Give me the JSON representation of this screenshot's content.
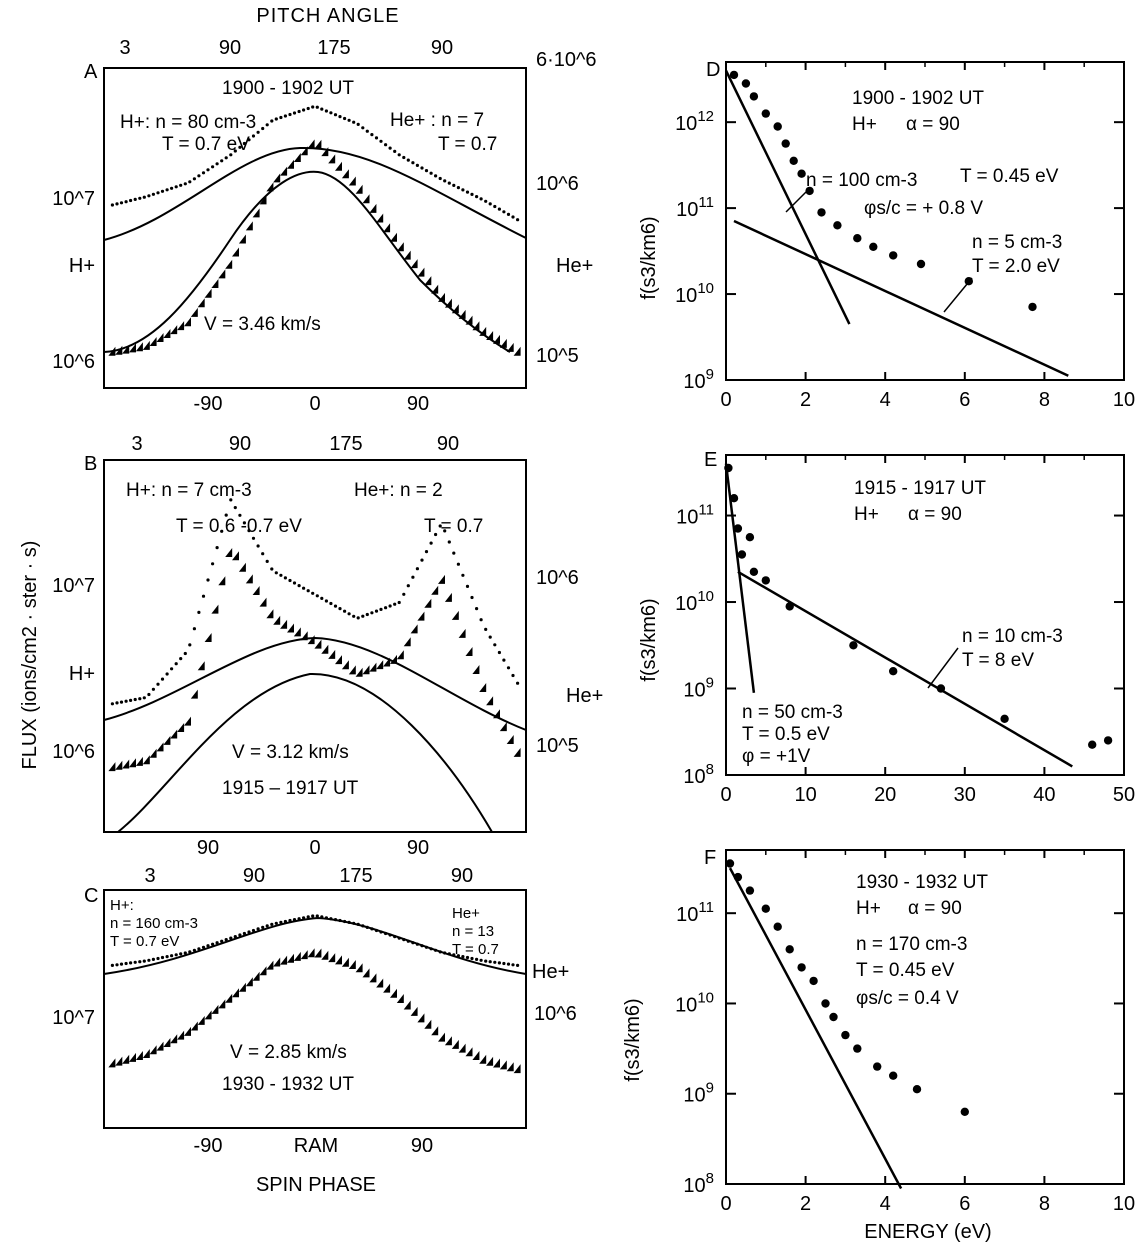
{
  "figure": {
    "top_axis_title": "PITCH ANGLE",
    "left_axis_title": "FLUX (ions/cm2 · ster · s)",
    "spin_phase_label": "SPIN PHASE",
    "energy_label": "ENERGY (eV)",
    "f_label": "f(s3/km6)"
  },
  "chart_data": [
    {
      "panel": "A",
      "type": "scatter",
      "title": "1900 - 1902 UT",
      "top_ticks": [
        "3",
        "90",
        "175",
        "90"
      ],
      "bottom_ticks": [
        "-90",
        "0",
        "90"
      ],
      "left_ticks": [
        "10^7",
        "10^6"
      ],
      "right_ticks": [
        "6·10^6",
        "10^6",
        "10^5"
      ],
      "left_species": "H+",
      "right_species": "He+",
      "h_params": "H+: n = 80 cm-3",
      "h_temp": "T = 0.7 eV",
      "he_params": "He+ : n = 7",
      "he_temp": "T = 0.7",
      "velocity": "V = 3.46 km/s",
      "xlim": [
        -200,
        200
      ],
      "x": [
        -200,
        -160,
        -120,
        -80,
        -40,
        0,
        40,
        80,
        120,
        160,
        200
      ],
      "series": [
        {
          "values": [
            2.6,
            2.75,
            2.95,
            3.35,
            3.85,
            4.05,
            3.8,
            3.35,
            3.0,
            2.7,
            2.35
          ]
        },
        {
          "values": [
            0.5,
            0.6,
            0.95,
            1.8,
            2.95,
            3.55,
            2.9,
            2.05,
            1.3,
            0.8,
            0.45
          ]
        }
      ]
    },
    {
      "panel": "B",
      "type": "scatter",
      "top_ticks": [
        "3",
        "90",
        "175",
        "90"
      ],
      "bottom_ticks": [
        "90",
        "0",
        "90"
      ],
      "left_ticks": [
        "10^7",
        "10^6"
      ],
      "right_ticks": [
        "10^6",
        "10^5"
      ],
      "left_species": "H+",
      "right_species": "He+",
      "h_params": "H+: n = 7 cm-3",
      "h_temp": "T = 0.6 -0.7 eV",
      "he_params": "He+: n = 2",
      "he_temp": "T = 0.7",
      "velocity": "V = 3.12 km/s",
      "time": "1915 – 1917 UT",
      "xlim": [
        -200,
        200
      ],
      "x": [
        -200,
        -160,
        -120,
        -80,
        -40,
        0,
        40,
        80,
        120,
        160,
        200
      ],
      "series": [
        {
          "values": [
            1.6,
            1.7,
            2.3,
            4.2,
            3.3,
            3.0,
            2.7,
            2.9,
            3.9,
            2.6,
            1.7
          ]
        },
        {
          "values": [
            0.8,
            0.9,
            1.4,
            3.6,
            2.7,
            2.4,
            2.0,
            2.2,
            3.2,
            1.8,
            0.8
          ]
        }
      ]
    },
    {
      "panel": "C",
      "type": "scatter",
      "top_ticks": [
        "3",
        "90",
        "175",
        "90"
      ],
      "bottom_ticks": [
        "-90",
        "RAM",
        "90"
      ],
      "left_ticks": [
        "10^7"
      ],
      "right_ticks": [
        "10^6"
      ],
      "left_species": "",
      "right_species": "He+",
      "h_params_1": "H+:",
      "h_params_2": "n = 160 cm-3",
      "h_temp": "T = 0.7 eV",
      "he_params_1": "He+",
      "he_params_2": "n = 13",
      "he_temp": "T = 0.7",
      "velocity": "V = 2.85 km/s",
      "time": "1930 - 1932 UT",
      "xlim": [
        -200,
        200
      ],
      "x": [
        -200,
        -160,
        -120,
        -80,
        -40,
        0,
        40,
        80,
        120,
        160,
        200
      ],
      "series": [
        {
          "values": [
            2.85,
            2.95,
            3.1,
            3.35,
            3.6,
            3.75,
            3.6,
            3.35,
            3.1,
            2.95,
            2.85
          ]
        },
        {
          "values": [
            1.1,
            1.3,
            1.7,
            2.3,
            2.9,
            3.1,
            2.85,
            2.3,
            1.6,
            1.2,
            1.0
          ]
        }
      ]
    },
    {
      "panel": "D",
      "type": "scatter",
      "title": "1900 - 1902 UT",
      "species": "H+",
      "alpha": "α = 90",
      "xlim": [
        0,
        10
      ],
      "ylim": [
        9,
        12.7
      ],
      "x_ticks": [
        "0",
        "2",
        "4",
        "6",
        "8",
        "10"
      ],
      "y_ticks": [
        "10^12",
        "10^11",
        "10^10",
        "10^9"
      ],
      "fit1_label_1": "n = 100 cm-3",
      "fit1_label_2": "T = 0.45 eV",
      "fit1_label_3": "φs/c = + 0.8 V",
      "fit2_label_1": "n = 5 cm-3",
      "fit2_label_2": "T = 2.0 eV",
      "points_x": [
        0.2,
        0.5,
        0.7,
        1.0,
        1.3,
        1.5,
        1.7,
        1.9,
        2.1,
        2.4,
        2.8,
        3.3,
        3.7,
        4.2,
        4.9,
        6.1,
        7.7
      ],
      "points_y": [
        12.55,
        12.45,
        12.3,
        12.1,
        11.95,
        11.75,
        11.55,
        11.4,
        11.2,
        10.95,
        10.8,
        10.65,
        10.55,
        10.45,
        10.35,
        10.15,
        9.85
      ],
      "fits": [
        {
          "x": [
            0,
            3.1
          ],
          "y": [
            12.6,
            9.65
          ]
        },
        {
          "x": [
            0.2,
            8.6
          ],
          "y": [
            10.85,
            9.05
          ]
        }
      ]
    },
    {
      "panel": "E",
      "type": "scatter",
      "title": "1915 - 1917 UT",
      "species": "H+",
      "alpha": "α = 90",
      "xlim": [
        0,
        50
      ],
      "ylim": [
        8,
        11.7
      ],
      "x_ticks": [
        "0",
        "10",
        "20",
        "30",
        "40",
        "50"
      ],
      "y_ticks": [
        "10^11",
        "10^10",
        "10^9",
        "10^8"
      ],
      "fit1_label_1": "n = 50 cm-3",
      "fit1_label_2": "T = 0.5 eV",
      "fit1_label_3": "φ = +1V",
      "fit2_label_1": "n = 10 cm-3",
      "fit2_label_2": "T = 8 eV",
      "points_x": [
        0.3,
        1.0,
        1.5,
        2.0,
        3.0,
        3.5,
        5.0,
        8.0,
        16.0,
        21.0,
        27.0,
        35.0,
        46.0,
        48.0
      ],
      "points_y": [
        11.55,
        11.2,
        10.85,
        10.55,
        10.75,
        10.35,
        10.25,
        9.95,
        9.5,
        9.2,
        9.0,
        8.65,
        8.35,
        8.4
      ],
      "fits": [
        {
          "x": [
            0,
            3.5
          ],
          "y": [
            11.6,
            8.95
          ]
        },
        {
          "x": [
            1.5,
            43.5
          ],
          "y": [
            10.35,
            8.1
          ]
        }
      ]
    },
    {
      "panel": "F",
      "type": "scatter",
      "title": "1930 - 1932 UT",
      "species": "H+",
      "alpha": "α = 90",
      "xlim": [
        0,
        10
      ],
      "ylim": [
        8,
        11.7
      ],
      "x_ticks": [
        "0",
        "2",
        "4",
        "6",
        "8",
        "10"
      ],
      "y_ticks": [
        "10^11",
        "10^10",
        "10^9",
        "10^8"
      ],
      "fit1_label_1": "n = 170 cm-3",
      "fit1_label_2": "T = 0.45 eV",
      "fit1_label_3": "φs/c = 0.4 V",
      "points_x": [
        0.1,
        0.3,
        0.6,
        1.0,
        1.3,
        1.6,
        1.9,
        2.2,
        2.5,
        2.7,
        3.0,
        3.3,
        3.8,
        4.2,
        4.8,
        6.0
      ],
      "points_y": [
        11.55,
        11.4,
        11.25,
        11.05,
        10.85,
        10.6,
        10.4,
        10.25,
        10.0,
        9.85,
        9.65,
        9.5,
        9.3,
        9.2,
        9.05,
        8.8
      ],
      "fits": [
        {
          "x": [
            0.1,
            4.4
          ],
          "y": [
            11.5,
            7.95
          ]
        }
      ]
    }
  ]
}
